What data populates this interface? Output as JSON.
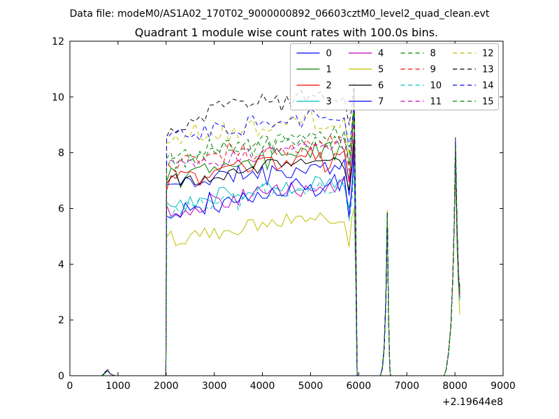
{
  "header": {
    "data_file_label": "Data file: modeM0/AS1A02_170T02_9000000892_06603cztM0_level2_quad_clean.evt"
  },
  "chart_data": {
    "type": "line",
    "title": "Quadrant 1 module wise count rates with 100.0s bins.",
    "suptitle": "Data file: modeM0/AS1A02_170T02_9000000892_06603cztM0_level2_quad_clean.evt",
    "xlabel": "",
    "ylabel": "",
    "bin_size_s": 100.0,
    "x_offset_label": "+2.19644e8",
    "xlim": [
      0,
      9000
    ],
    "ylim": [
      0,
      12
    ],
    "x_ticks": [
      0,
      1000,
      2000,
      3000,
      4000,
      5000,
      6000,
      7000,
      8000,
      9000
    ],
    "y_ticks": [
      0,
      2,
      4,
      6,
      8,
      10,
      12
    ],
    "grid": false,
    "legend": {
      "position": "upper-center-right",
      "columns": 4,
      "frame_color": "#b3b3b3",
      "background": "rgba(255,255,255,0.8)"
    },
    "features": {
      "pre_bump": {
        "x_start": 660,
        "x_peak": 785,
        "x_end": 940,
        "peak_y": 0.2
      },
      "band": {
        "x_start": 2000,
        "x_end": 5968,
        "dip_x": 5800,
        "end_peak_x": 5905
      },
      "spike1": {
        "x_start": 6450,
        "x_peak": 6595,
        "x_end": 6660,
        "peak_y": 5.9
      },
      "spike2": {
        "x_start": 7770,
        "x_peak": 8010,
        "x_data_end": 8100
      }
    },
    "series": [
      {
        "label": "0",
        "color": "#0000ff",
        "linestyle": "solid",
        "band_levels": [
          6.8,
          7.25,
          7.5
        ],
        "end_peak": 8.3,
        "spike1_peak": 5.8,
        "spike2_peak": 8.2,
        "tail_end": 3.0,
        "noise": 0.3,
        "seed": 11
      },
      {
        "label": "1",
        "color": "#008000",
        "linestyle": "solid",
        "band_levels": [
          7.15,
          7.8,
          8.2
        ],
        "end_peak": 10.3,
        "spike1_peak": 5.85,
        "spike2_peak": 8.3,
        "tail_end": 3.1,
        "noise": 0.32,
        "seed": 22
      },
      {
        "label": "2",
        "color": "#ff0000",
        "linestyle": "solid",
        "band_levels": [
          6.95,
          7.5,
          7.8
        ],
        "end_peak": 8.6,
        "spike1_peak": 5.8,
        "spike2_peak": 8.1,
        "tail_end": 2.9,
        "noise": 0.3,
        "seed": 33
      },
      {
        "label": "3",
        "color": "#00bfbf",
        "linestyle": "solid",
        "band_levels": [
          6.05,
          6.6,
          7.0
        ],
        "end_peak": 8.0,
        "spike1_peak": 5.75,
        "spike2_peak": 7.8,
        "tail_end": 2.7,
        "noise": 0.28,
        "seed": 44
      },
      {
        "label": "4",
        "color": "#bf00bf",
        "linestyle": "solid",
        "band_levels": [
          5.85,
          6.4,
          6.9
        ],
        "end_peak": 8.2,
        "spike1_peak": 5.8,
        "spike2_peak": 7.9,
        "tail_end": 2.8,
        "noise": 0.3,
        "seed": 55
      },
      {
        "label": "5",
        "color": "#bfbf00",
        "linestyle": "solid",
        "band_levels": [
          4.85,
          5.3,
          5.75
        ],
        "end_peak": 6.0,
        "spike1_peak": 5.95,
        "spike2_peak": 7.2,
        "tail_end": 2.2,
        "noise": 0.25,
        "seed": 66
      },
      {
        "label": "6",
        "color": "#000000",
        "linestyle": "solid",
        "band_levels": [
          6.9,
          7.4,
          7.8
        ],
        "end_peak": 8.6,
        "spike1_peak": 5.8,
        "spike2_peak": 8.2,
        "tail_end": 3.0,
        "noise": 0.28,
        "seed": 77
      },
      {
        "label": "7",
        "color": "#0000ff",
        "linestyle": "solid",
        "band_levels": [
          5.8,
          6.3,
          6.9
        ],
        "end_peak": 7.8,
        "spike1_peak": 5.75,
        "spike2_peak": 8.0,
        "tail_end": 2.8,
        "noise": 0.3,
        "seed": 88
      },
      {
        "label": "8",
        "color": "#008000",
        "linestyle": "dashed",
        "band_levels": [
          7.6,
          8.2,
          8.6
        ],
        "end_peak": 9.4,
        "spike1_peak": 5.85,
        "spike2_peak": 8.3,
        "tail_end": 3.0,
        "noise": 0.32,
        "seed": 99
      },
      {
        "label": "9",
        "color": "#ff0000",
        "linestyle": "dashed",
        "band_levels": [
          7.5,
          8.0,
          8.4
        ],
        "end_peak": 9.2,
        "spike1_peak": 5.8,
        "spike2_peak": 8.2,
        "tail_end": 2.9,
        "noise": 0.3,
        "seed": 110
      },
      {
        "label": "10",
        "color": "#00bfbf",
        "linestyle": "dashed",
        "band_levels": [
          5.9,
          6.4,
          6.8
        ],
        "end_peak": 7.6,
        "spike1_peak": 5.75,
        "spike2_peak": 7.9,
        "tail_end": 2.7,
        "noise": 0.28,
        "seed": 121
      },
      {
        "label": "11",
        "color": "#bf00bf",
        "linestyle": "dashed",
        "band_levels": [
          7.45,
          7.9,
          8.3
        ],
        "end_peak": 9.3,
        "spike1_peak": 5.8,
        "spike2_peak": 8.1,
        "tail_end": 2.9,
        "noise": 0.3,
        "seed": 132
      },
      {
        "label": "12",
        "color": "#bfbf00",
        "linestyle": "dashed",
        "band_levels": [
          8.3,
          8.85,
          9.2
        ],
        "end_peak": 10.0,
        "spike1_peak": 5.85,
        "spike2_peak": 8.4,
        "tail_end": 3.0,
        "noise": 0.33,
        "seed": 143
      },
      {
        "label": "13",
        "color": "#000000",
        "linestyle": "dashed",
        "band_levels": [
          8.85,
          9.85,
          10.05
        ],
        "end_peak": 10.5,
        "spike1_peak": 5.9,
        "spike2_peak": 8.55,
        "tail_end": 3.2,
        "noise": 0.3,
        "seed": 154
      },
      {
        "label": "14",
        "color": "#0000ff",
        "linestyle": "dashed",
        "band_levels": [
          8.4,
          9.0,
          9.3
        ],
        "end_peak": 9.9,
        "spike1_peak": 5.85,
        "spike2_peak": 8.45,
        "tail_end": 3.1,
        "noise": 0.3,
        "seed": 165
      },
      {
        "label": "15",
        "color": "#008000",
        "linestyle": "dashed",
        "band_levels": [
          7.7,
          8.3,
          8.7
        ],
        "end_peak": 9.6,
        "spike1_peak": 5.8,
        "spike2_peak": 8.35,
        "tail_end": 3.0,
        "noise": 0.3,
        "seed": 176
      }
    ]
  }
}
